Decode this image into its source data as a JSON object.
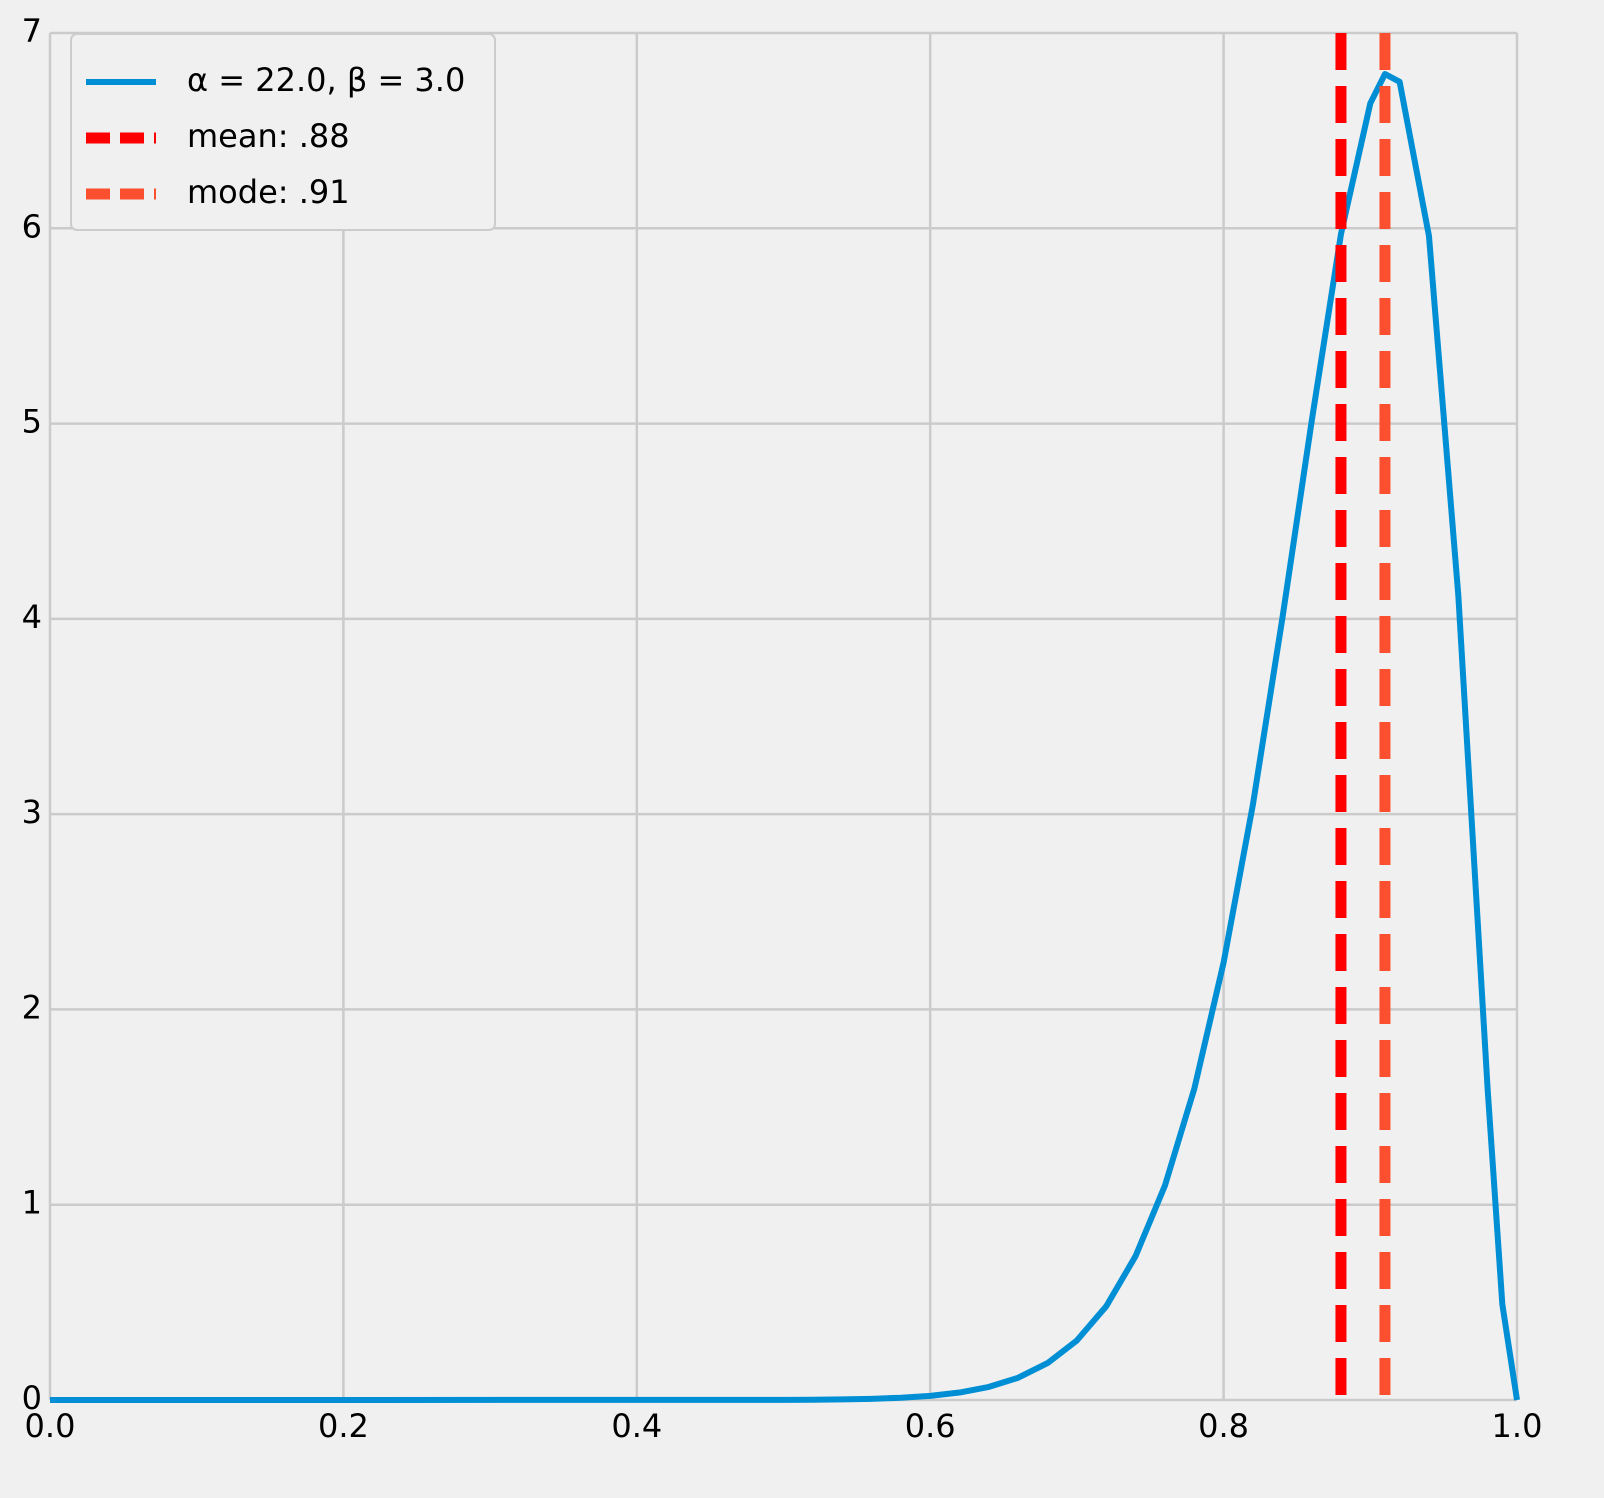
{
  "chart_data": {
    "type": "line",
    "x": [
      0,
      0.5,
      0.52,
      0.54,
      0.56,
      0.58,
      0.6,
      0.62,
      0.64,
      0.66,
      0.68,
      0.7,
      0.72,
      0.74,
      0.76,
      0.78,
      0.8,
      0.82,
      0.84,
      0.86,
      0.88,
      0.9,
      0.91,
      0.92,
      0.94,
      0.96,
      0.98,
      0.99,
      1.0
    ],
    "series": [
      {
        "name": "α = 22.0, β = 3.0",
        "color": "#008fd5",
        "values": [
          0,
          0.0007,
          0.0015,
          0.0031,
          0.006,
          0.0115,
          0.0213,
          0.0383,
          0.067,
          0.114,
          0.189,
          0.305,
          0.48,
          0.737,
          1.098,
          1.593,
          2.24,
          3.05,
          4.0,
          5.01,
          5.97,
          6.64,
          6.79,
          6.75,
          5.96,
          4.12,
          1.59,
          0.49,
          0
        ]
      }
    ],
    "vlines": [
      {
        "name": "mean: .88",
        "x": 0.88,
        "color": "#ff0000"
      },
      {
        "name": "mode: .91",
        "x": 0.91,
        "color": "#fc4f30"
      }
    ],
    "xlim": [
      0,
      1
    ],
    "ylim": [
      0,
      7
    ],
    "xticks": [
      {
        "value": 0,
        "label": "0.0"
      },
      0.2,
      0.4,
      0.6,
      0.8,
      {
        "value": 1,
        "label": "1.0"
      }
    ],
    "yticks": [
      0,
      1,
      2,
      3,
      4,
      5,
      6,
      7
    ],
    "grid": true,
    "legend": "upper left"
  }
}
